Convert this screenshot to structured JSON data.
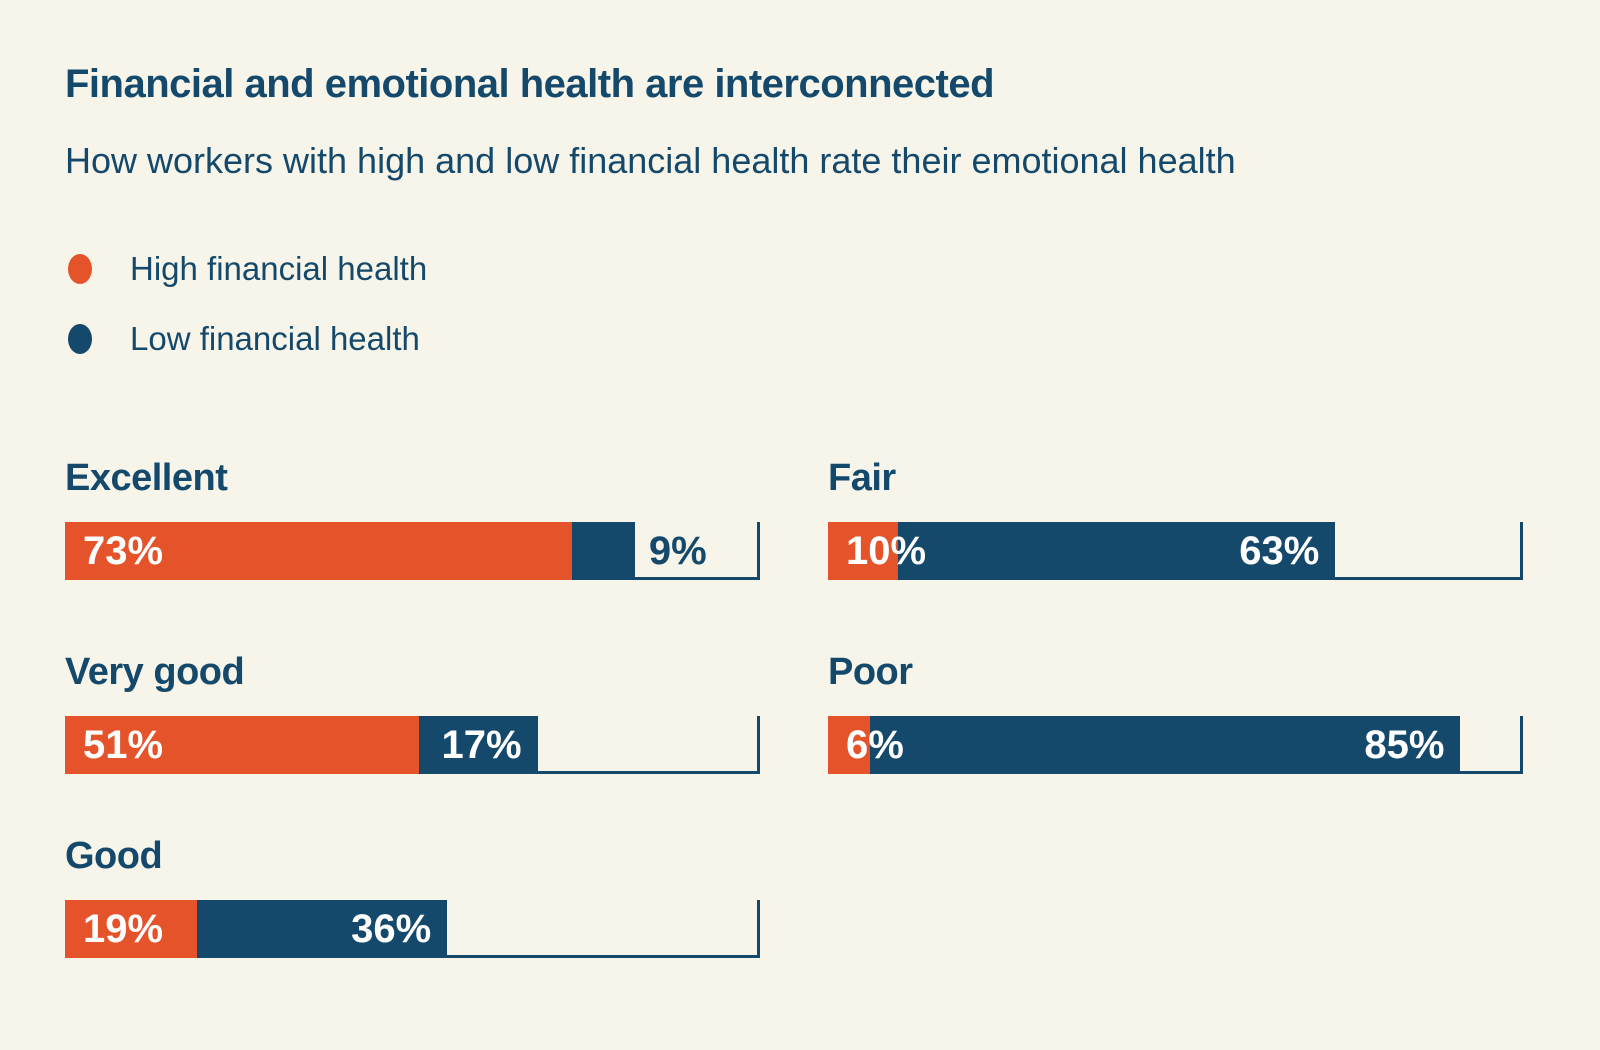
{
  "header": {
    "title": "Financial and emotional health are interconnected",
    "subtitle": "How workers with high and low financial health rate their emotional health"
  },
  "legend": {
    "position": "top-left",
    "items": [
      {
        "label": "High financial health",
        "color": "#e4532a"
      },
      {
        "label": "Low financial health",
        "color": "#14496b"
      }
    ]
  },
  "colors": {
    "high": "#e4532a",
    "low": "#14496b",
    "background": "#f7f5e9",
    "text": "#14496b",
    "value_label_on_bar": "#ffffff"
  },
  "chart_data": {
    "type": "bar",
    "orientation": "horizontal",
    "unit": "%",
    "axis_max": 100,
    "grid": false,
    "title": "Financial and emotional health are interconnected",
    "subtitle": "How workers with high and low financial health rate their emotional health",
    "categories": [
      "Excellent",
      "Very good",
      "Good",
      "Fair",
      "Poor"
    ],
    "series": [
      {
        "name": "High financial health",
        "values": [
          73,
          51,
          19,
          10,
          6
        ],
        "labels": [
          "73%",
          "51%",
          "19%",
          "10%",
          "6%"
        ]
      },
      {
        "name": "Low financial health",
        "values": [
          9,
          17,
          36,
          63,
          85
        ],
        "labels": [
          "9%",
          "17%",
          "36%",
          "63%",
          "85%"
        ]
      }
    ],
    "layout_note_columns": {
      "left": [
        "Excellent",
        "Very good",
        "Good"
      ],
      "right": [
        "Fair",
        "Poor"
      ]
    }
  }
}
